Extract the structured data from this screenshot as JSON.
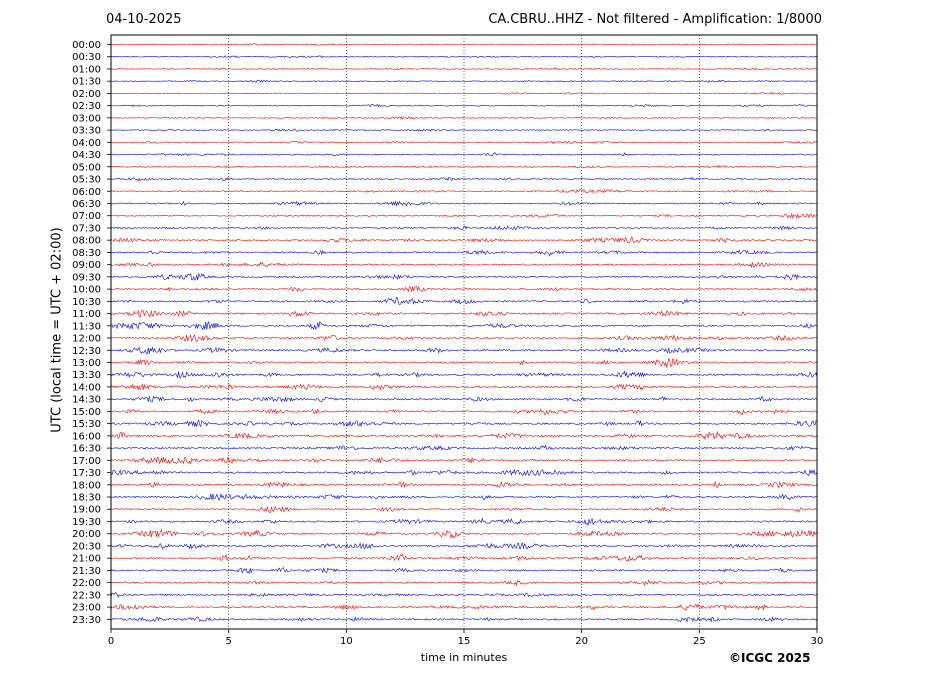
{
  "header": {
    "date": "04-10-2025",
    "title": "CA.CBRU..HHZ - Not filtered - Amplification: 1/8000"
  },
  "footer": {
    "copyright": "©ICGC 2025"
  },
  "chart_data": {
    "type": "line",
    "title": "CA.CBRU..HHZ - Not filtered - Amplification: 1/8000",
    "xlabel": "time in minutes",
    "ylabel": "UTC (local time = UTC + 02:00)",
    "xlim": [
      0,
      30
    ],
    "x_ticks": [
      0,
      5,
      10,
      15,
      20,
      25,
      30
    ],
    "grid": "vertical dotted lines at x ticks",
    "rows": [
      "00:00",
      "00:30",
      "01:00",
      "01:30",
      "02:00",
      "02:30",
      "03:00",
      "03:30",
      "04:00",
      "04:30",
      "05:00",
      "05:30",
      "06:00",
      "06:30",
      "07:00",
      "07:30",
      "08:00",
      "08:30",
      "09:00",
      "09:30",
      "10:00",
      "10:30",
      "11:00",
      "11:30",
      "12:00",
      "12:30",
      "13:00",
      "13:30",
      "14:00",
      "14:30",
      "15:00",
      "15:30",
      "16:00",
      "16:30",
      "17:00",
      "17:30",
      "18:00",
      "18:30",
      "19:00",
      "19:30",
      "20:00",
      "20:30",
      "21:00",
      "21:30",
      "22:00",
      "22:30",
      "23:00",
      "23:30"
    ],
    "row_colors": [
      "#ff0000",
      "#0000ff"
    ],
    "activity_by_row": [
      0.15,
      0.2,
      0.15,
      0.25,
      0.2,
      0.3,
      0.2,
      0.25,
      0.3,
      0.4,
      0.3,
      0.4,
      0.5,
      0.5,
      0.5,
      0.5,
      0.6,
      0.6,
      0.65,
      0.7,
      0.7,
      0.8,
      0.85,
      0.85,
      0.9,
      0.9,
      0.85,
      0.9,
      0.85,
      0.9,
      0.85,
      0.9,
      1.0,
      0.85,
      0.85,
      0.85,
      0.8,
      0.8,
      0.8,
      0.8,
      0.85,
      0.85,
      0.8,
      0.8,
      0.8,
      0.75,
      0.75,
      0.75
    ]
  }
}
